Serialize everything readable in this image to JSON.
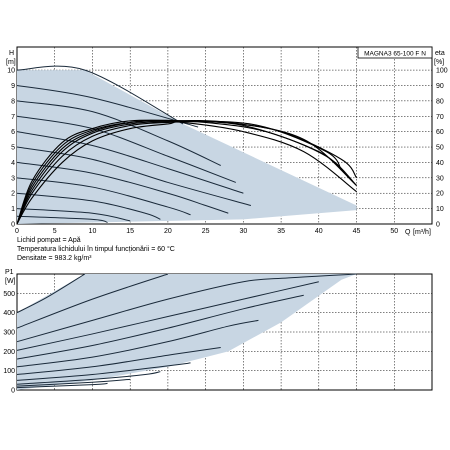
{
  "chart_data": [
    {
      "type": "line",
      "model_label": "MAGNA3 65-100 F N",
      "y_label": "H",
      "y_unit": "[m]",
      "y2_label": "eta",
      "y2_unit": "[%]",
      "x_label": "Q",
      "x_unit": "[m³/h]",
      "x_ticks": [
        "0",
        "5",
        "10",
        "15",
        "20",
        "25",
        "30",
        "35",
        "40",
        "45",
        "50"
      ],
      "y_ticks": [
        "0",
        "1",
        "2",
        "3",
        "4",
        "5",
        "6",
        "7",
        "8",
        "9",
        "10"
      ],
      "y2_ticks": [
        "0",
        "10",
        "20",
        "30",
        "40",
        "50",
        "60",
        "70",
        "80",
        "90",
        "100"
      ],
      "xlim": [
        0,
        55
      ],
      "ylim": [
        0,
        11.5
      ],
      "y2lim": [
        0,
        115
      ],
      "grid": true,
      "operating_area": [
        [
          0,
          10
        ],
        [
          9,
          10
        ],
        [
          22,
          6.5
        ],
        [
          45,
          1.2
        ],
        [
          45,
          0.9
        ],
        [
          30,
          0.3
        ],
        [
          0,
          0
        ]
      ],
      "head_curves": [
        [
          [
            0,
            10
          ],
          [
            9,
            10
          ],
          [
            22,
            6.5
          ]
        ],
        [
          [
            0,
            9
          ],
          [
            10,
            8.2
          ],
          [
            24,
            6.3
          ]
        ],
        [
          [
            0,
            8
          ],
          [
            10,
            7.3
          ],
          [
            20,
            5.4
          ],
          [
            27,
            3.8
          ]
        ],
        [
          [
            0,
            7
          ],
          [
            10,
            6.2
          ],
          [
            20,
            4.4
          ],
          [
            29,
            2.7
          ]
        ],
        [
          [
            0,
            6
          ],
          [
            10,
            5.1
          ],
          [
            20,
            3.6
          ],
          [
            30,
            2.0
          ]
        ],
        [
          [
            0,
            5
          ],
          [
            10,
            4.2
          ],
          [
            20,
            2.7
          ],
          [
            31,
            1.2
          ]
        ],
        [
          [
            0,
            4
          ],
          [
            10,
            3.3
          ],
          [
            20,
            2.0
          ],
          [
            25,
            1.2
          ],
          [
            28,
            0.7
          ]
        ],
        [
          [
            0,
            3
          ],
          [
            10,
            2.4
          ],
          [
            20,
            1.1
          ],
          [
            23,
            0.6
          ]
        ],
        [
          [
            0,
            2
          ],
          [
            10,
            1.5
          ],
          [
            17,
            0.7
          ],
          [
            19,
            0.3
          ]
        ],
        [
          [
            0,
            1
          ],
          [
            10,
            0.7
          ],
          [
            15,
            0.2
          ]
        ],
        [
          [
            0,
            0.5
          ],
          [
            10,
            0.3
          ],
          [
            12,
            0.1
          ]
        ]
      ],
      "efficiency_curves": [
        [
          [
            0,
            0
          ],
          [
            2,
            17
          ],
          [
            6,
            40
          ],
          [
            10,
            54
          ],
          [
            15,
            62
          ],
          [
            20,
            65
          ],
          [
            22,
            66
          ],
          [
            30,
            60
          ],
          [
            38,
            47
          ],
          [
            45,
            21
          ]
        ],
        [
          [
            0,
            0
          ],
          [
            2,
            20
          ],
          [
            6,
            44
          ],
          [
            10,
            57
          ],
          [
            15,
            64
          ],
          [
            20,
            66
          ],
          [
            25,
            66
          ],
          [
            33,
            60
          ],
          [
            41,
            44
          ],
          [
            45,
            25
          ]
        ],
        [
          [
            0,
            0
          ],
          [
            2,
            22
          ],
          [
            6,
            47
          ],
          [
            10,
            59
          ],
          [
            15,
            65
          ],
          [
            20,
            66.5
          ],
          [
            27,
            66
          ],
          [
            35,
            60
          ],
          [
            43,
            42
          ],
          [
            45,
            30
          ]
        ],
        [
          [
            0,
            0
          ],
          [
            2,
            24
          ],
          [
            6,
            49
          ],
          [
            10,
            60
          ],
          [
            15,
            66
          ],
          [
            19,
            67
          ],
          [
            28,
            66
          ],
          [
            38,
            55
          ],
          [
            45,
            25
          ]
        ],
        [
          [
            0,
            0
          ],
          [
            2,
            26
          ],
          [
            6,
            51
          ],
          [
            10,
            61
          ],
          [
            15,
            66
          ],
          [
            21,
            67
          ],
          [
            30,
            64
          ],
          [
            40,
            47
          ],
          [
            44,
            30
          ]
        ],
        [
          [
            0,
            0
          ],
          [
            2,
            28
          ],
          [
            6,
            53
          ],
          [
            10,
            62
          ],
          [
            15,
            67
          ],
          [
            22,
            67
          ],
          [
            32,
            64
          ],
          [
            41,
            47
          ],
          [
            43,
            35
          ]
        ]
      ],
      "notes": [
        "Lichid pompat = Apă",
        "Temperatura lichidului în timpul funcționării = 60 °C",
        "Densitate = 983.2 kg/m³"
      ]
    },
    {
      "type": "line",
      "y_label": "P1",
      "y_unit": "[W]",
      "y_ticks": [
        "0",
        "100",
        "200",
        "300",
        "400",
        "500"
      ],
      "ylim": [
        0,
        600
      ],
      "xlim": [
        0,
        55
      ],
      "grid": true,
      "operating_area": [
        [
          0,
          400
        ],
        [
          9,
          600
        ],
        [
          45,
          600
        ],
        [
          43,
          570
        ],
        [
          35,
          350
        ],
        [
          28,
          200
        ],
        [
          20,
          120
        ],
        [
          10,
          50
        ],
        [
          0,
          0
        ]
      ],
      "power_curves": [
        [
          [
            0,
            400
          ],
          [
            4,
            480
          ],
          [
            9,
            600
          ]
        ],
        [
          [
            0,
            320
          ],
          [
            10,
            470
          ],
          [
            20,
            600
          ]
        ],
        [
          [
            0,
            250
          ],
          [
            10,
            360
          ],
          [
            20,
            470
          ],
          [
            30,
            560
          ],
          [
            36,
            580
          ],
          [
            45,
            600
          ]
        ],
        [
          [
            0,
            205
          ],
          [
            10,
            290
          ],
          [
            20,
            380
          ],
          [
            30,
            470
          ],
          [
            40,
            560
          ]
        ],
        [
          [
            0,
            160
          ],
          [
            10,
            230
          ],
          [
            20,
            320
          ],
          [
            30,
            420
          ],
          [
            38,
            490
          ]
        ],
        [
          [
            0,
            120
          ],
          [
            10,
            170
          ],
          [
            20,
            250
          ],
          [
            28,
            330
          ],
          [
            32,
            360
          ]
        ],
        [
          [
            0,
            80
          ],
          [
            10,
            120
          ],
          [
            20,
            180
          ],
          [
            27,
            220
          ]
        ],
        [
          [
            0,
            50
          ],
          [
            10,
            80
          ],
          [
            20,
            125
          ],
          [
            23,
            140
          ]
        ],
        [
          [
            0,
            30
          ],
          [
            10,
            55
          ],
          [
            17,
            80
          ],
          [
            19,
            95
          ]
        ],
        [
          [
            0,
            20
          ],
          [
            10,
            40
          ],
          [
            15,
            55
          ]
        ],
        [
          [
            0,
            12
          ],
          [
            10,
            28
          ],
          [
            12,
            34
          ]
        ]
      ]
    }
  ]
}
